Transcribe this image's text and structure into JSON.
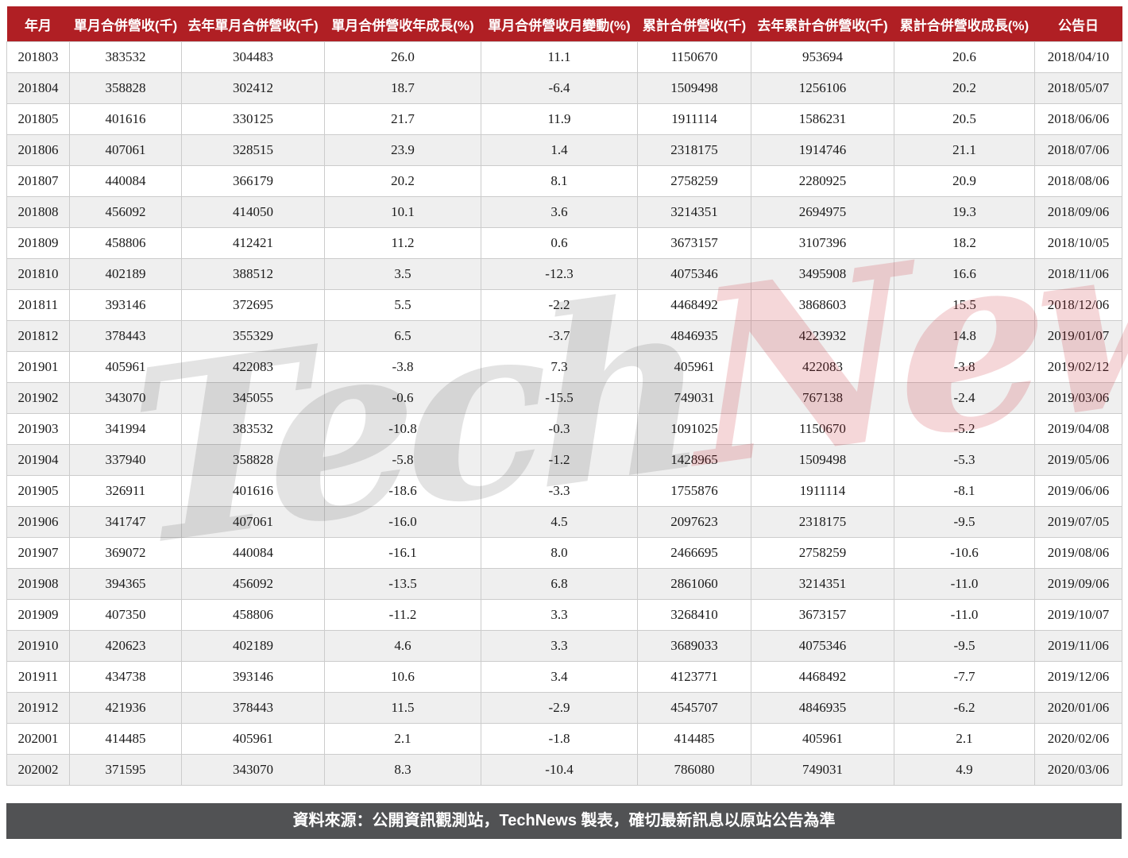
{
  "chart_data": {
    "type": "table",
    "columns": [
      "年月",
      "單月合併營收(千)",
      "去年單月合併營收(千)",
      "單月合併營收年成長(%)",
      "單月合併營收月變動(%)",
      "累計合併營收(千)",
      "去年累計合併營收(千)",
      "累計合併營收成長(%)",
      "公告日"
    ],
    "rows": [
      [
        "201803",
        "383532",
        "304483",
        "26.0",
        "11.1",
        "1150670",
        "953694",
        "20.6",
        "2018/04/10"
      ],
      [
        "201804",
        "358828",
        "302412",
        "18.7",
        "-6.4",
        "1509498",
        "1256106",
        "20.2",
        "2018/05/07"
      ],
      [
        "201805",
        "401616",
        "330125",
        "21.7",
        "11.9",
        "1911114",
        "1586231",
        "20.5",
        "2018/06/06"
      ],
      [
        "201806",
        "407061",
        "328515",
        "23.9",
        "1.4",
        "2318175",
        "1914746",
        "21.1",
        "2018/07/06"
      ],
      [
        "201807",
        "440084",
        "366179",
        "20.2",
        "8.1",
        "2758259",
        "2280925",
        "20.9",
        "2018/08/06"
      ],
      [
        "201808",
        "456092",
        "414050",
        "10.1",
        "3.6",
        "3214351",
        "2694975",
        "19.3",
        "2018/09/06"
      ],
      [
        "201809",
        "458806",
        "412421",
        "11.2",
        "0.6",
        "3673157",
        "3107396",
        "18.2",
        "2018/10/05"
      ],
      [
        "201810",
        "402189",
        "388512",
        "3.5",
        "-12.3",
        "4075346",
        "3495908",
        "16.6",
        "2018/11/06"
      ],
      [
        "201811",
        "393146",
        "372695",
        "5.5",
        "-2.2",
        "4468492",
        "3868603",
        "15.5",
        "2018/12/06"
      ],
      [
        "201812",
        "378443",
        "355329",
        "6.5",
        "-3.7",
        "4846935",
        "4223932",
        "14.8",
        "2019/01/07"
      ],
      [
        "201901",
        "405961",
        "422083",
        "-3.8",
        "7.3",
        "405961",
        "422083",
        "-3.8",
        "2019/02/12"
      ],
      [
        "201902",
        "343070",
        "345055",
        "-0.6",
        "-15.5",
        "749031",
        "767138",
        "-2.4",
        "2019/03/06"
      ],
      [
        "201903",
        "341994",
        "383532",
        "-10.8",
        "-0.3",
        "1091025",
        "1150670",
        "-5.2",
        "2019/04/08"
      ],
      [
        "201904",
        "337940",
        "358828",
        "-5.8",
        "-1.2",
        "1428965",
        "1509498",
        "-5.3",
        "2019/05/06"
      ],
      [
        "201905",
        "326911",
        "401616",
        "-18.6",
        "-3.3",
        "1755876",
        "1911114",
        "-8.1",
        "2019/06/06"
      ],
      [
        "201906",
        "341747",
        "407061",
        "-16.0",
        "4.5",
        "2097623",
        "2318175",
        "-9.5",
        "2019/07/05"
      ],
      [
        "201907",
        "369072",
        "440084",
        "-16.1",
        "8.0",
        "2466695",
        "2758259",
        "-10.6",
        "2019/08/06"
      ],
      [
        "201908",
        "394365",
        "456092",
        "-13.5",
        "6.8",
        "2861060",
        "3214351",
        "-11.0",
        "2019/09/06"
      ],
      [
        "201909",
        "407350",
        "458806",
        "-11.2",
        "3.3",
        "3268410",
        "3673157",
        "-11.0",
        "2019/10/07"
      ],
      [
        "201910",
        "420623",
        "402189",
        "4.6",
        "3.3",
        "3689033",
        "4075346",
        "-9.5",
        "2019/11/06"
      ],
      [
        "201911",
        "434738",
        "393146",
        "10.6",
        "3.4",
        "4123771",
        "4468492",
        "-7.7",
        "2019/12/06"
      ],
      [
        "201912",
        "421936",
        "378443",
        "11.5",
        "-2.9",
        "4545707",
        "4846935",
        "-6.2",
        "2020/01/06"
      ],
      [
        "202001",
        "414485",
        "405961",
        "2.1",
        "-1.8",
        "414485",
        "405961",
        "2.1",
        "2020/02/06"
      ],
      [
        "202002",
        "371595",
        "343070",
        "8.3",
        "-10.4",
        "786080",
        "749031",
        "4.9",
        "2020/03/06"
      ]
    ]
  },
  "watermark": {
    "gray_text": "Tech",
    "red_text": "News"
  },
  "footer": {
    "text": "資料來源：公開資訊觀測站，TechNews 製表，確切最新訊息以原站公告為準"
  },
  "colors": {
    "header_bg": "#b01f24",
    "header_text": "#ffffff",
    "row_bg": "#ffffff",
    "row_alt_bg": "#efefef",
    "border": "#cccccc",
    "cell_text": "#1a1a1a",
    "footer_bg": "#515254",
    "footer_text": "#ffffff",
    "watermark_gray": "rgba(40,40,40,0.13)",
    "watermark_red": "rgba(200,35,45,0.18)"
  }
}
